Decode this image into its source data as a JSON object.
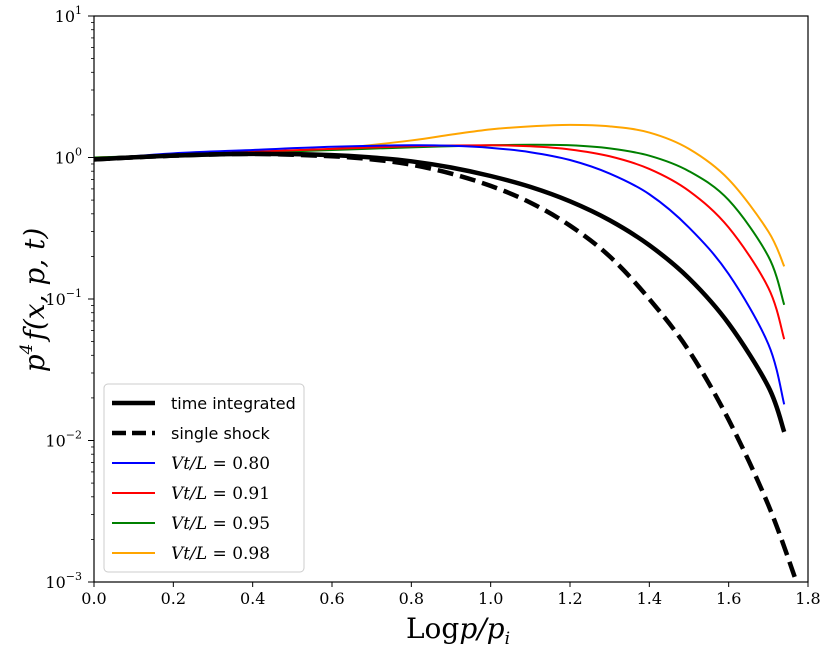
{
  "chart_data": {
    "type": "line",
    "title": "",
    "xlabel": "Log p/p_i",
    "xlabel_parts": {
      "prefix": "Log",
      "math": "p/p",
      "sub": "i"
    },
    "ylabel": "p^4 f(x,p,t)",
    "ylabel_parts": {
      "base": "p",
      "sup": "4",
      "rest": "f(x, p, t)"
    },
    "xlim": [
      0.0,
      1.8
    ],
    "ylim": [
      0.001,
      10
    ],
    "yscale": "log",
    "legend_position": "lower-left",
    "x_ticks": [
      "0.0",
      "0.2",
      "0.4",
      "0.6",
      "0.8",
      "1.0",
      "1.2",
      "1.4",
      "1.6",
      "1.8"
    ],
    "y_ticks": [
      {
        "value": 10,
        "base": "10",
        "exp": "1"
      },
      {
        "value": 1,
        "base": "10",
        "exp": "0"
      },
      {
        "value": 0.1,
        "base": "10",
        "exp": "−1"
      },
      {
        "value": 0.01,
        "base": "10",
        "exp": "−2"
      },
      {
        "value": 0.001,
        "base": "10",
        "exp": "−3"
      }
    ],
    "series": [
      {
        "name": "time integrated",
        "color": "#000000",
        "style": "solid",
        "weight": "thick",
        "x": [
          0.0,
          0.2,
          0.4,
          0.6,
          0.7,
          0.8,
          0.9,
          1.0,
          1.1,
          1.2,
          1.3,
          1.4,
          1.5,
          1.6,
          1.7,
          1.74
        ],
        "y": [
          0.97,
          1.03,
          1.06,
          1.04,
          1.0,
          0.94,
          0.85,
          0.74,
          0.62,
          0.49,
          0.36,
          0.24,
          0.14,
          0.067,
          0.024,
          0.0115
        ]
      },
      {
        "name": "single shock",
        "color": "#000000",
        "style": "dashed",
        "weight": "thick",
        "x": [
          0.0,
          0.2,
          0.4,
          0.6,
          0.7,
          0.8,
          0.9,
          1.0,
          1.1,
          1.2,
          1.3,
          1.4,
          1.5,
          1.6,
          1.7,
          1.77
        ],
        "y": [
          0.97,
          1.03,
          1.06,
          1.02,
          0.97,
          0.89,
          0.77,
          0.63,
          0.48,
          0.33,
          0.2,
          0.1,
          0.043,
          0.014,
          0.0035,
          0.00102
        ]
      },
      {
        "name": "Vt/L = 0.80",
        "color": "#0000ff",
        "style": "solid",
        "weight": "normal",
        "x": [
          0.0,
          0.2,
          0.4,
          0.6,
          0.8,
          0.9,
          1.0,
          1.1,
          1.2,
          1.3,
          1.4,
          1.5,
          1.6,
          1.7,
          1.74
        ],
        "y": [
          0.97,
          1.07,
          1.13,
          1.19,
          1.22,
          1.21,
          1.17,
          1.09,
          0.96,
          0.77,
          0.55,
          0.32,
          0.15,
          0.048,
          0.018
        ]
      },
      {
        "name": "Vt/L = 0.91",
        "color": "#ff0000",
        "style": "solid",
        "weight": "normal",
        "x": [
          0.0,
          0.2,
          0.4,
          0.6,
          0.8,
          1.0,
          1.1,
          1.2,
          1.3,
          1.4,
          1.5,
          1.6,
          1.7,
          1.74
        ],
        "y": [
          0.98,
          1.05,
          1.1,
          1.15,
          1.2,
          1.22,
          1.2,
          1.14,
          1.02,
          0.83,
          0.58,
          0.32,
          0.12,
          0.052
        ]
      },
      {
        "name": "Vt/L = 0.95",
        "color": "#008000",
        "style": "solid",
        "weight": "normal",
        "x": [
          0.0,
          0.2,
          0.4,
          0.6,
          0.8,
          1.0,
          1.1,
          1.2,
          1.3,
          1.4,
          1.5,
          1.6,
          1.7,
          1.74
        ],
        "y": [
          1.0,
          1.04,
          1.08,
          1.13,
          1.18,
          1.22,
          1.23,
          1.22,
          1.16,
          1.03,
          0.8,
          0.5,
          0.2,
          0.091
        ]
      },
      {
        "name": "Vt/L = 0.98",
        "color": "#ffa500",
        "style": "solid",
        "weight": "normal",
        "x": [
          0.0,
          0.2,
          0.4,
          0.6,
          0.8,
          0.9,
          1.0,
          1.1,
          1.2,
          1.3,
          1.4,
          1.5,
          1.6,
          1.7,
          1.74
        ],
        "y": [
          1.0,
          1.03,
          1.07,
          1.15,
          1.32,
          1.45,
          1.58,
          1.66,
          1.7,
          1.66,
          1.5,
          1.15,
          0.7,
          0.3,
          0.17
        ]
      }
    ],
    "legend": [
      {
        "label": "time integrated",
        "math": false
      },
      {
        "label": "single shock",
        "math": false
      },
      {
        "label": "Vt/L = 0.80",
        "math": true,
        "prefix": "Vt/L",
        "value": "0.80"
      },
      {
        "label": "Vt/L = 0.91",
        "math": true,
        "prefix": "Vt/L",
        "value": "0.91"
      },
      {
        "label": "Vt/L = 0.95",
        "math": true,
        "prefix": "Vt/L",
        "value": "0.95"
      },
      {
        "label": "Vt/L = 0.98",
        "math": true,
        "prefix": "Vt/L",
        "value": "0.98"
      }
    ]
  }
}
